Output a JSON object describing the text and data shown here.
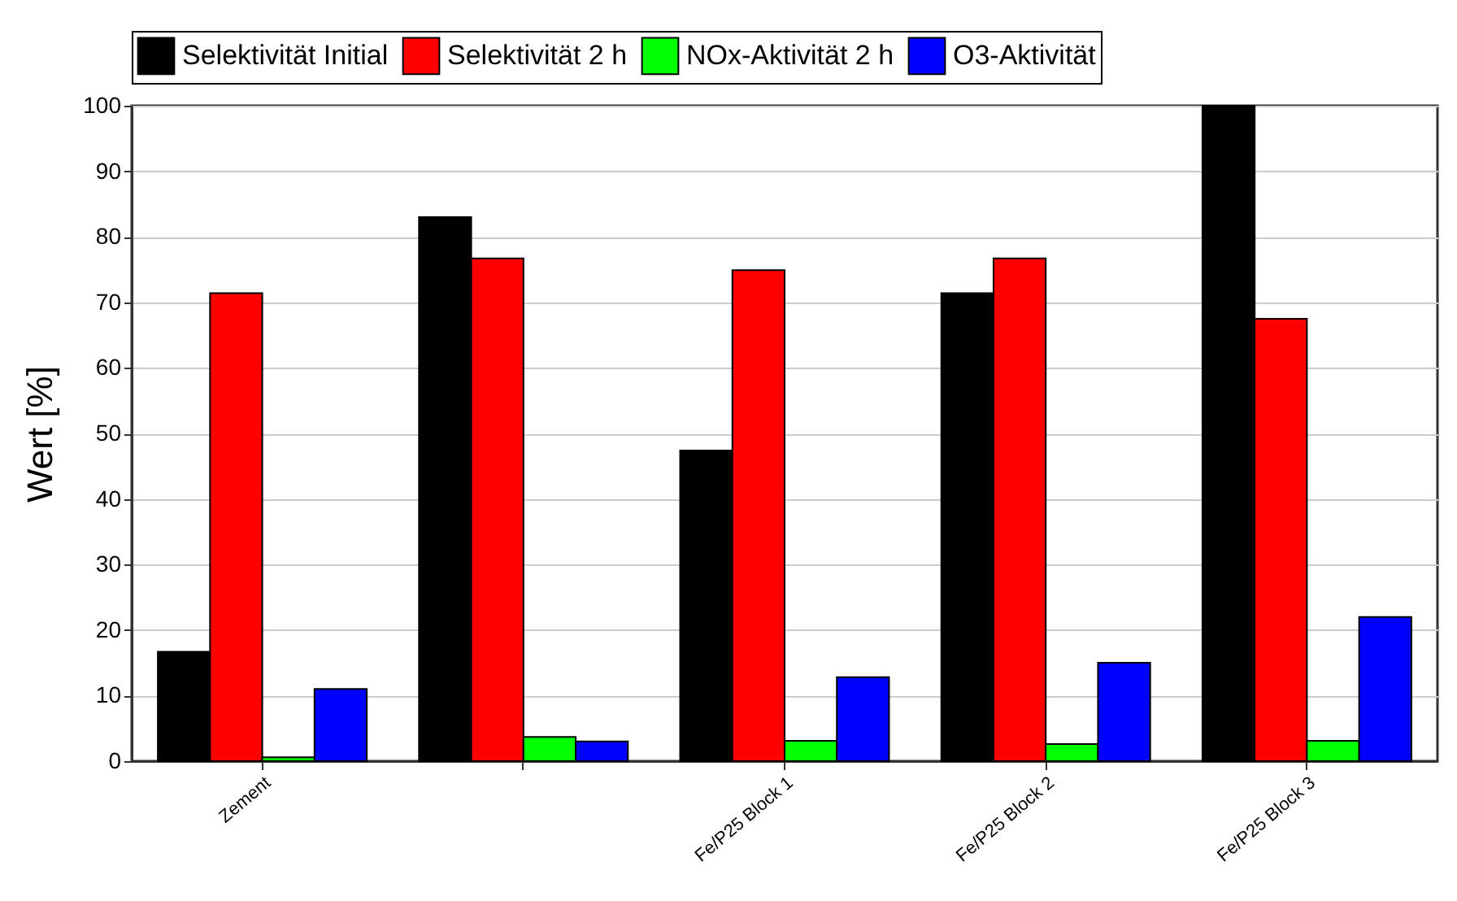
{
  "chart_data": {
    "type": "bar",
    "ylabel": "Wert [%]",
    "categories": [
      "Zement",
      null,
      "Fe/P25 Block 1",
      "Fe/P25 Block 2",
      "Fe/P25 Block 3"
    ],
    "series": [
      {
        "name": "Selektivität Initial",
        "color": "#000000",
        "values": [
          16.7,
          83.0,
          47.4,
          71.4,
          100
        ]
      },
      {
        "name": "Selektivität 2 h",
        "color": "#ff0000",
        "values": [
          71.4,
          76.7,
          74.9,
          76.7,
          67.5
        ]
      },
      {
        "name": "NOx-Aktivität 2 h",
        "color": "#00ff00",
        "values": [
          0.6,
          3.7,
          3.1,
          2.6,
          3.1
        ]
      },
      {
        "name": "O3-Aktivität",
        "color": "#0000ff",
        "values": [
          11.0,
          3.0,
          12.8,
          15.0,
          22.0
        ]
      }
    ],
    "ylim": [
      0,
      100
    ],
    "yticks": [
      0,
      10,
      20,
      30,
      40,
      50,
      60,
      70,
      80,
      90,
      100
    ],
    "grid": true,
    "legend": "top"
  }
}
